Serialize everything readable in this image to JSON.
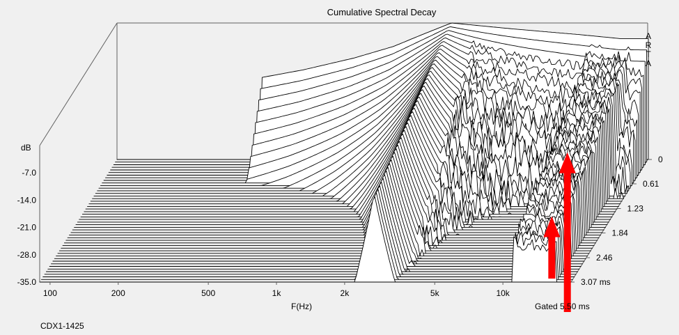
{
  "chart_data": {
    "type": "waterfall",
    "title": "Cumulative Spectral Decay",
    "watermark": "ARTA",
    "ylabel": "dB",
    "xlabel": "F(Hz)",
    "zlabel_unit": "ms",
    "y_ticks": [
      "-7.0",
      "-14.0",
      "-21.0",
      "-28.0",
      "-35.0"
    ],
    "y_range": [
      -35,
      0
    ],
    "x_ticks": [
      "100",
      "200",
      "500",
      "1k",
      "2k",
      "5k",
      "10k"
    ],
    "x_tick_values": [
      100,
      200,
      500,
      1000,
      2000,
      5000,
      10000
    ],
    "x_range_hz": [
      90,
      20000
    ],
    "z_ticks": [
      "0",
      "0.61",
      "1.23",
      "1.84",
      "2.46",
      "3.07 ms"
    ],
    "z_tick_values": [
      0,
      0.61,
      1.23,
      1.84,
      2.46,
      3.07
    ],
    "gate_label": "Gated 5.50 ms",
    "footer_label": "CDX1-1425",
    "slices": 48,
    "response_start_hz": 390,
    "peak_hz": 2700,
    "initial_response_db": [
      {
        "hz": 390,
        "db": -14
      },
      {
        "hz": 600,
        "db": -12
      },
      {
        "hz": 1000,
        "db": -9
      },
      {
        "hz": 1500,
        "db": -6
      },
      {
        "hz": 2000,
        "db": -3
      },
      {
        "hz": 2700,
        "db": 0
      },
      {
        "hz": 5000,
        "db": -1.5
      },
      {
        "hz": 10000,
        "db": -3
      },
      {
        "hz": 15000,
        "db": -4
      }
    ],
    "annotations": [
      {
        "type": "red-arrow",
        "hz": 10500,
        "time_ms": 0.7
      },
      {
        "type": "red-arrow",
        "hz": 13500,
        "time_ms": 2.3
      }
    ],
    "colors": {
      "background": "#f0f0f0",
      "lines": "#000000",
      "arrows": "#ff0000"
    }
  }
}
